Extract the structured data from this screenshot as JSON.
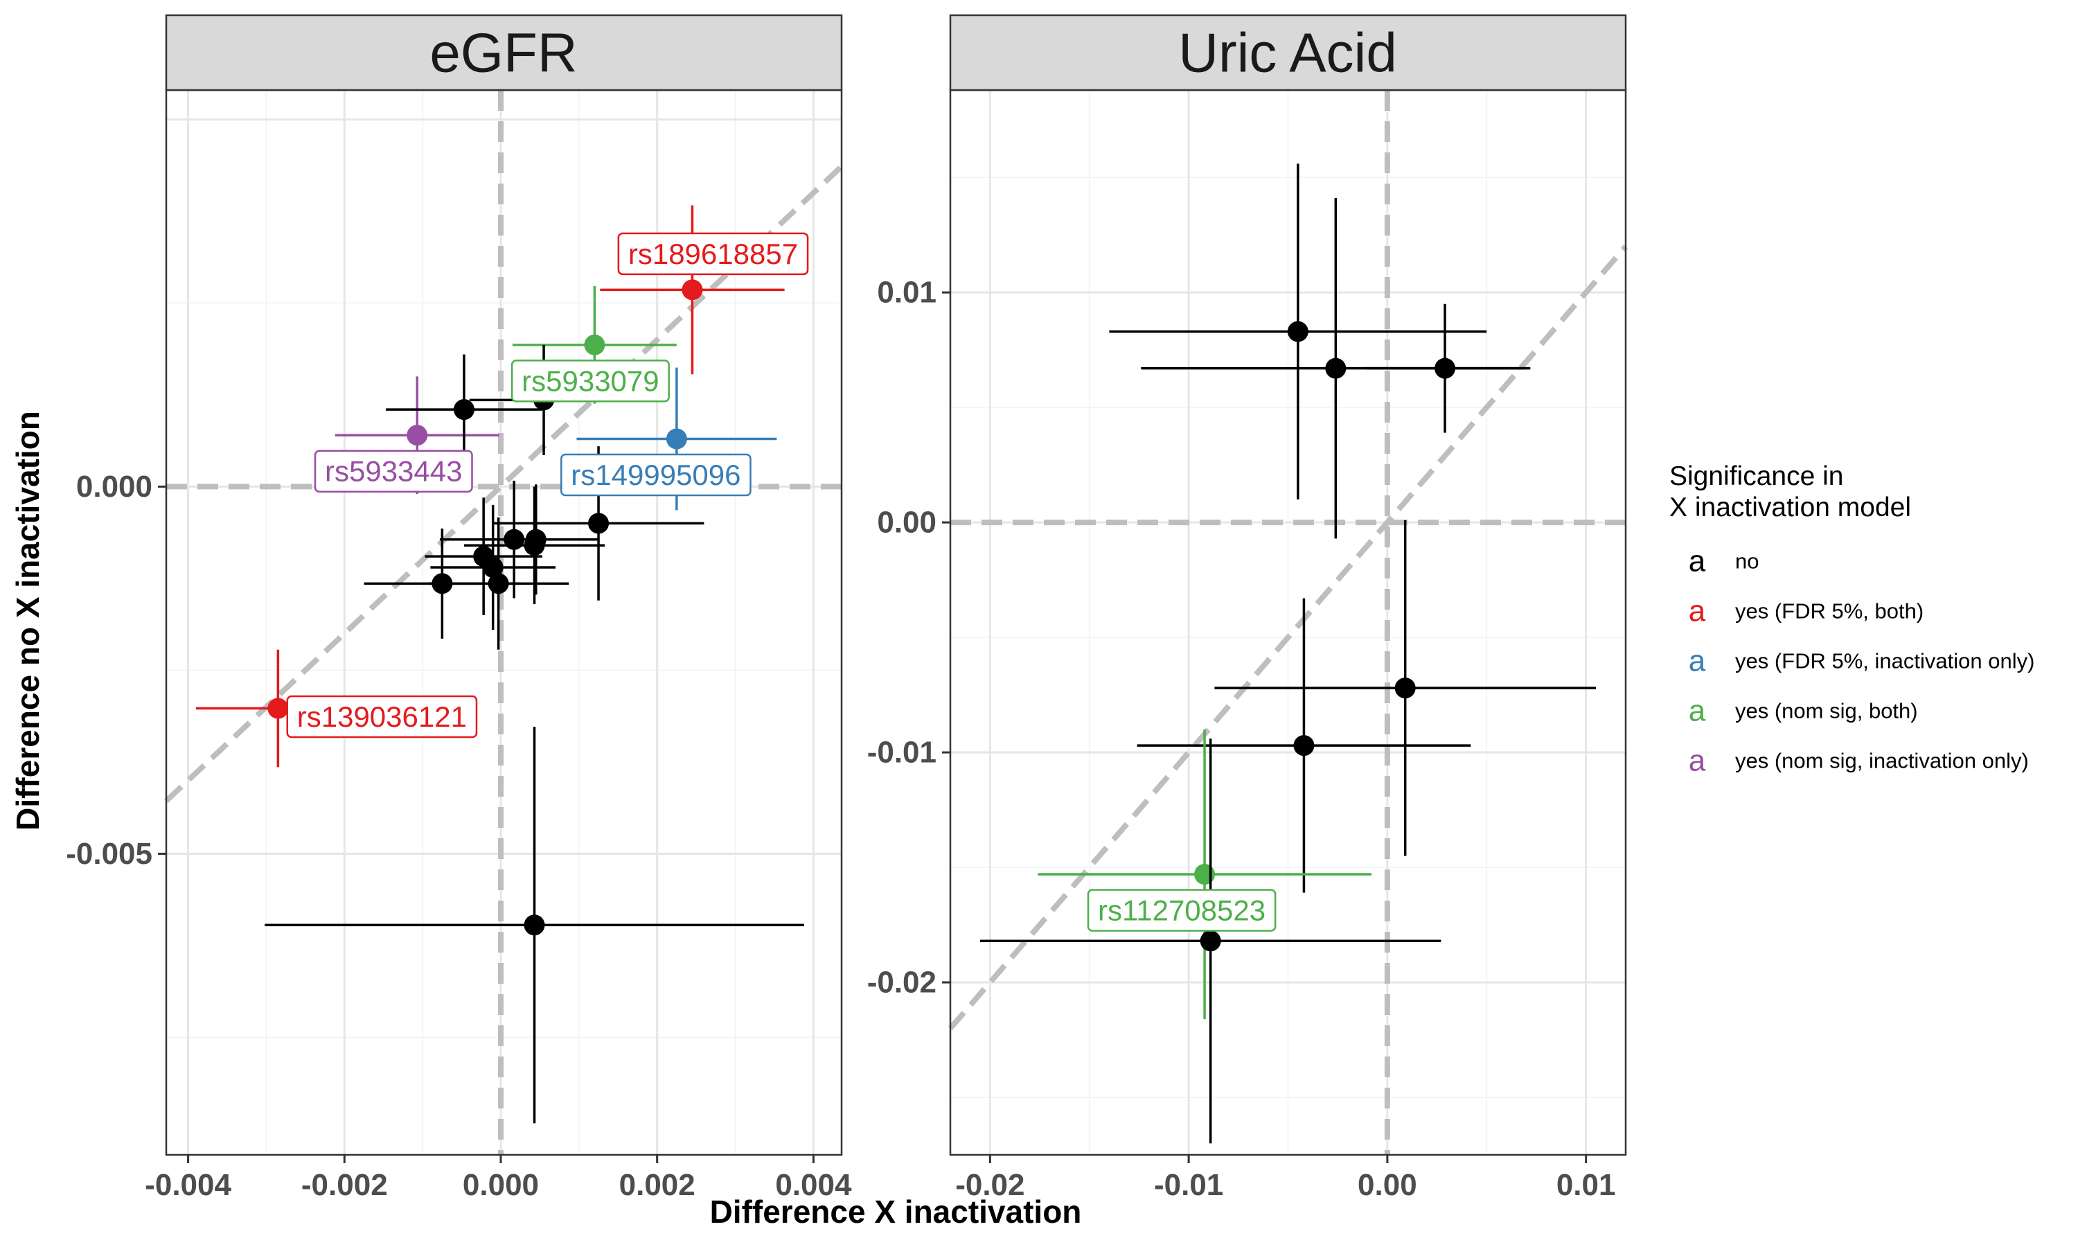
{
  "figure": {
    "x_axis_title": "Difference X inactivation",
    "y_axis_title": "Difference no X inactivation"
  },
  "legend": {
    "title_line1": "Significance in",
    "title_line2": "X inactivation model",
    "key_glyph": "a",
    "entries": [
      {
        "label": "no",
        "color": "#000000"
      },
      {
        "label": "yes (FDR 5%, both)",
        "color": "#e41a1c"
      },
      {
        "label": "yes (FDR 5%, inactivation only)",
        "color": "#377eb8"
      },
      {
        "label": "yes (nom sig, both)",
        "color": "#4daf4a"
      },
      {
        "label": "yes (nom sig, inactivation only)",
        "color": "#984ea3"
      }
    ]
  },
  "chart_data": [
    {
      "type": "scatter",
      "title": "eGFR",
      "xlim": [
        -0.00428,
        0.00436
      ],
      "ylim": [
        -0.0091,
        0.0054
      ],
      "x_ticks": [
        -0.004,
        -0.002,
        0.0,
        0.002,
        0.004
      ],
      "x_tick_labels": [
        "-0.004",
        "-0.002",
        "0.000",
        "0.002",
        "0.004"
      ],
      "y_ticks": [
        -0.005,
        0.0
      ],
      "y_tick_labels": [
        "-0.005",
        "0.000"
      ],
      "reference_lines": {
        "x0": 0,
        "y0": 0,
        "identity": true
      },
      "grid": true,
      "points": [
        {
          "x": 0.00245,
          "y": 0.00268,
          "xerr": 0.00118,
          "yerr": 0.00115,
          "group": 1,
          "label": "rs189618857"
        },
        {
          "x": 0.0012,
          "y": 0.00193,
          "xerr": 0.00105,
          "yerr": 0.0008,
          "group": 3,
          "label": "rs5933079"
        },
        {
          "x": 0.00225,
          "y": 0.00065,
          "xerr": 0.00128,
          "yerr": 0.00097,
          "group": 2,
          "label": "rs149995096"
        },
        {
          "x": -0.00107,
          "y": 0.0007,
          "xerr": 0.00105,
          "yerr": 0.0008,
          "group": 4,
          "label": "rs5933443"
        },
        {
          "x": -0.00285,
          "y": -0.00302,
          "xerr": 0.00105,
          "yerr": 0.0008,
          "group": 1,
          "label": "rs139036121"
        },
        {
          "x": -0.00047,
          "y": 0.00105,
          "xerr": 0.001,
          "yerr": 0.00075,
          "group": 0
        },
        {
          "x": 0.00055,
          "y": 0.00118,
          "xerr": 0.00095,
          "yerr": 0.00075,
          "group": 0
        },
        {
          "x": 0.00125,
          "y": -0.0005,
          "xerr": 0.00135,
          "yerr": 0.00105,
          "group": 0
        },
        {
          "x": 0.00017,
          "y": -0.00072,
          "xerr": 0.00095,
          "yerr": 0.0008,
          "group": 0
        },
        {
          "x": 0.00045,
          "y": -0.00072,
          "xerr": 0.0008,
          "yerr": 0.00075,
          "group": 0
        },
        {
          "x": 0.00043,
          "y": -0.0008,
          "xerr": 0.0009,
          "yerr": 0.0008,
          "group": 0
        },
        {
          "x": -0.00022,
          "y": -0.00095,
          "xerr": 0.00075,
          "yerr": 0.0008,
          "group": 0
        },
        {
          "x": -0.0001,
          "y": -0.0011,
          "xerr": 0.0008,
          "yerr": 0.00085,
          "group": 0
        },
        {
          "x": -3e-05,
          "y": -0.00132,
          "xerr": 0.0009,
          "yerr": 0.0009,
          "group": 0
        },
        {
          "x": -0.00075,
          "y": -0.00132,
          "xerr": 0.001,
          "yerr": 0.00075,
          "group": 0
        },
        {
          "x": 0.00043,
          "y": -0.00597,
          "xerr": 0.00345,
          "yerr": 0.0027,
          "group": 0
        }
      ]
    },
    {
      "type": "scatter",
      "title": "Uric Acid",
      "xlim": [
        -0.022,
        0.012
      ],
      "ylim": [
        -0.0275,
        0.0188
      ],
      "x_ticks": [
        -0.02,
        -0.01,
        0.0,
        0.01
      ],
      "x_tick_labels": [
        "-0.02",
        "-0.01",
        "0.00",
        "0.01"
      ],
      "y_ticks": [
        -0.02,
        -0.01,
        0.0,
        0.01
      ],
      "y_tick_labels": [
        "-0.02",
        "-0.01",
        "0.00",
        "0.01"
      ],
      "reference_lines": {
        "x0": 0,
        "y0": 0,
        "identity": true
      },
      "grid": true,
      "points": [
        {
          "x": -0.0045,
          "y": 0.0083,
          "xerr": 0.0095,
          "yerr": 0.0073,
          "group": 0
        },
        {
          "x": -0.0026,
          "y": 0.0067,
          "xerr": 0.0098,
          "yerr": 0.0074,
          "group": 0
        },
        {
          "x": 0.0029,
          "y": 0.0067,
          "xerr": 0.004,
          "yerr": 0.0028,
          "group": 0
        },
        {
          "x": 0.0009,
          "y": -0.0072,
          "xerr": 0.0096,
          "yerr": 0.0073,
          "group": 0
        },
        {
          "x": -0.0042,
          "y": -0.0097,
          "xerr": 0.0084,
          "yerr": 0.0064,
          "group": 0
        },
        {
          "x": -0.0092,
          "y": -0.0153,
          "xerr": 0.0084,
          "yerr": 0.0063,
          "group": 3,
          "label": "rs112708523"
        },
        {
          "x": -0.0089,
          "y": -0.0182,
          "xerr": 0.0116,
          "yerr": 0.0088,
          "group": 0
        }
      ]
    }
  ]
}
